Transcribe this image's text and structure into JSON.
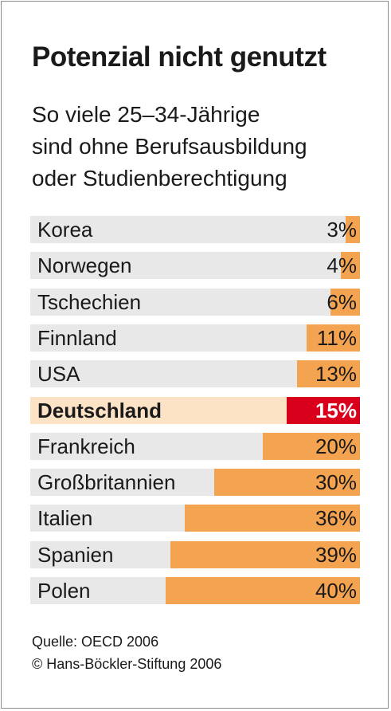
{
  "header": {
    "title": "Potenzial nicht genutzt",
    "subtitle_lines": [
      "So viele 25–34-Jährige",
      "sind ohne Berufsausbildung",
      "oder Studienberechtigung"
    ]
  },
  "chart_data": {
    "type": "bar",
    "orientation": "horizontal",
    "categories": [
      "Korea",
      "Norwegen",
      "Tschechien",
      "Finnland",
      "USA",
      "Deutschland",
      "Frankreich",
      "Großbritannien",
      "Italien",
      "Spanien",
      "Polen"
    ],
    "values": [
      3,
      4,
      6,
      11,
      13,
      15,
      20,
      30,
      36,
      39,
      40
    ],
    "value_labels": [
      "3%",
      "4%",
      "6%",
      "11%",
      "13%",
      "15%",
      "20%",
      "30%",
      "36%",
      "39%",
      "40%"
    ],
    "unit": "%",
    "highlight": "Deutschland",
    "colors": {
      "bar": "#f4a350",
      "highlight_bar": "#d9001b",
      "track": "#e8e8e8",
      "highlight_track": "#fde3c6"
    },
    "grid": false,
    "legend": "none"
  },
  "footer": {
    "source": "Quelle: OECD 2006",
    "copyright": "© Hans-Böckler-Stiftung 2006"
  }
}
